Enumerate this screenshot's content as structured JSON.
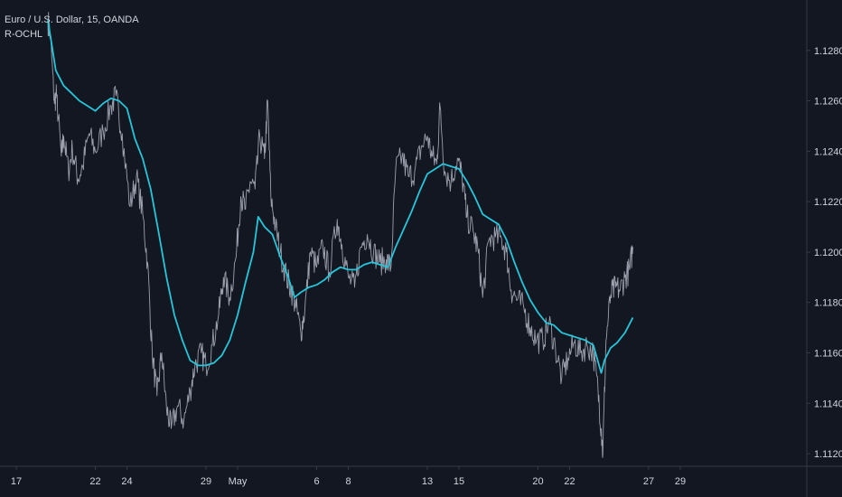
{
  "symbol_title": "Euro / U.S. Dollar, 15, OANDA",
  "indicator_name": "R-OCHL",
  "colors": {
    "background": "#131722",
    "price_line": "#9aa0ad",
    "indicator_line": "#26c6da",
    "axis_text": "#d1d4dc",
    "axis_line": "#363a45"
  },
  "chart_data": {
    "type": "line",
    "title": "Euro / U.S. Dollar, 15, OANDA",
    "xlabel": "",
    "ylabel": "",
    "ylim": [
      1.1115,
      1.13
    ],
    "x_ticks": [
      {
        "label": "17",
        "day": 0
      },
      {
        "label": "22",
        "day": 5
      },
      {
        "label": "24",
        "day": 7
      },
      {
        "label": "29",
        "day": 12
      },
      {
        "label": "May",
        "day": 14
      },
      {
        "label": "6",
        "day": 19
      },
      {
        "label": "8",
        "day": 21
      },
      {
        "label": "13",
        "day": 26
      },
      {
        "label": "15",
        "day": 28
      },
      {
        "label": "20",
        "day": 33
      },
      {
        "label": "22",
        "day": 35
      },
      {
        "label": "27",
        "day": 40
      },
      {
        "label": "29",
        "day": 42
      }
    ],
    "y_ticks": [
      "1.11200",
      "1.11400",
      "1.11600",
      "1.11800",
      "1.12000",
      "1.12200",
      "1.12400",
      "1.12600",
      "1.12800"
    ],
    "y_tick_values": [
      1.112,
      1.114,
      1.116,
      1.118,
      1.12,
      1.122,
      1.124,
      1.126,
      1.128
    ],
    "series": [
      {
        "kind": "price",
        "points": [
          [
            2.0,
            1.1292
          ],
          [
            2.15,
            1.1286
          ],
          [
            2.4,
            1.126
          ],
          [
            2.55,
            1.1262
          ],
          [
            2.85,
            1.1238
          ],
          [
            3.0,
            1.1246
          ],
          [
            3.3,
            1.1232
          ],
          [
            3.55,
            1.1241
          ],
          [
            3.9,
            1.1229
          ],
          [
            4.2,
            1.1234
          ],
          [
            4.6,
            1.1247
          ],
          [
            5.0,
            1.124
          ],
          [
            5.5,
            1.1248
          ],
          [
            6.0,
            1.1258
          ],
          [
            6.3,
            1.1262
          ],
          [
            6.7,
            1.1247
          ],
          [
            7.2,
            1.1218
          ],
          [
            7.6,
            1.123
          ],
          [
            8.0,
            1.1215
          ],
          [
            8.3,
            1.1196
          ],
          [
            8.6,
            1.116
          ],
          [
            8.9,
            1.1143
          ],
          [
            9.2,
            1.116
          ],
          [
            9.5,
            1.1138
          ],
          [
            9.8,
            1.113
          ],
          [
            10.2,
            1.1139
          ],
          [
            10.6,
            1.1133
          ],
          [
            11.0,
            1.1145
          ],
          [
            11.3,
            1.1155
          ],
          [
            11.7,
            1.116
          ],
          [
            12.0,
            1.1155
          ],
          [
            12.4,
            1.1163
          ],
          [
            12.8,
            1.1175
          ],
          [
            13.1,
            1.119
          ],
          [
            13.5,
            1.1182
          ],
          [
            13.9,
            1.1198
          ],
          [
            14.2,
            1.1222
          ],
          [
            14.5,
            1.1217
          ],
          [
            14.8,
            1.1228
          ],
          [
            15.1,
            1.1225
          ],
          [
            15.4,
            1.1246
          ],
          [
            15.7,
            1.1237
          ],
          [
            15.9,
            1.126
          ],
          [
            16.1,
            1.1222
          ],
          [
            16.4,
            1.121
          ],
          [
            16.7,
            1.12
          ],
          [
            17.1,
            1.119
          ],
          [
            17.4,
            1.1185
          ],
          [
            17.7,
            1.1178
          ],
          [
            18.0,
            1.1168
          ],
          [
            18.25,
            1.1177
          ],
          [
            18.6,
            1.12
          ],
          [
            19.0,
            1.1194
          ],
          [
            19.4,
            1.1202
          ],
          [
            19.8,
            1.1192
          ],
          [
            20.3,
            1.1213
          ],
          [
            20.6,
            1.1203
          ],
          [
            21.0,
            1.119
          ],
          [
            21.4,
            1.1186
          ],
          [
            21.8,
            1.1202
          ],
          [
            22.2,
            1.1207
          ],
          [
            22.6,
            1.12
          ],
          [
            23.0,
            1.1196
          ],
          [
            23.4,
            1.1197
          ],
          [
            23.7,
            1.1194
          ],
          [
            24.0,
            1.1233
          ],
          [
            24.4,
            1.1238
          ],
          [
            24.8,
            1.123
          ],
          [
            25.2,
            1.1232
          ],
          [
            25.6,
            1.1241
          ],
          [
            26.0,
            1.1246
          ],
          [
            26.3,
            1.1238
          ],
          [
            26.6,
            1.1235
          ],
          [
            26.8,
            1.1258
          ],
          [
            27.1,
            1.1232
          ],
          [
            27.5,
            1.1228
          ],
          [
            27.9,
            1.1237
          ],
          [
            28.2,
            1.123
          ],
          [
            28.5,
            1.1214
          ],
          [
            28.9,
            1.1208
          ],
          [
            29.2,
            1.1201
          ],
          [
            29.5,
            1.1182
          ],
          [
            29.9,
            1.1205
          ],
          [
            30.3,
            1.1206
          ],
          [
            30.7,
            1.1205
          ],
          [
            31.0,
            1.12
          ],
          [
            31.3,
            1.1185
          ],
          [
            31.7,
            1.1181
          ],
          [
            32.1,
            1.1178
          ],
          [
            32.5,
            1.117
          ],
          [
            32.9,
            1.1165
          ],
          [
            33.3,
            1.1165
          ],
          [
            33.7,
            1.1172
          ],
          [
            34.1,
            1.1162
          ],
          [
            34.5,
            1.115
          ],
          [
            34.9,
            1.1158
          ],
          [
            35.3,
            1.1164
          ],
          [
            35.7,
            1.116
          ],
          [
            36.1,
            1.1163
          ],
          [
            36.5,
            1.116
          ],
          [
            36.8,
            1.1145
          ],
          [
            37.0,
            1.113
          ],
          [
            37.1,
            1.112
          ],
          [
            37.3,
            1.1165
          ],
          [
            37.6,
            1.1183
          ],
          [
            37.9,
            1.1186
          ],
          [
            38.2,
            1.1185
          ],
          [
            38.5,
            1.119
          ],
          [
            38.8,
            1.1193
          ],
          [
            39.0,
            1.1202
          ]
        ]
      },
      {
        "kind": "indicator",
        "name": "R-OCHL",
        "points": [
          [
            2.0,
            1.1292
          ],
          [
            2.5,
            1.1272
          ],
          [
            3.0,
            1.1266
          ],
          [
            3.5,
            1.1263
          ],
          [
            4.0,
            1.126
          ],
          [
            4.5,
            1.1258
          ],
          [
            5.0,
            1.1256
          ],
          [
            5.5,
            1.1259
          ],
          [
            6.0,
            1.1261
          ],
          [
            6.5,
            1.126
          ],
          [
            7.0,
            1.1257
          ],
          [
            7.5,
            1.1245
          ],
          [
            8.0,
            1.1237
          ],
          [
            8.5,
            1.1225
          ],
          [
            9.0,
            1.1208
          ],
          [
            9.5,
            1.119
          ],
          [
            10.0,
            1.1175
          ],
          [
            10.5,
            1.1165
          ],
          [
            11.0,
            1.1157
          ],
          [
            11.5,
            1.1155
          ],
          [
            12.0,
            1.1155
          ],
          [
            12.5,
            1.1156
          ],
          [
            13.0,
            1.1159
          ],
          [
            13.5,
            1.1165
          ],
          [
            14.0,
            1.1175
          ],
          [
            14.5,
            1.1188
          ],
          [
            15.0,
            1.12
          ],
          [
            15.3,
            1.1214
          ],
          [
            15.7,
            1.121
          ],
          [
            16.2,
            1.1207
          ],
          [
            16.7,
            1.1198
          ],
          [
            17.2,
            1.119
          ],
          [
            17.6,
            1.1182
          ],
          [
            18.0,
            1.1184
          ],
          [
            18.5,
            1.1186
          ],
          [
            19.0,
            1.1187
          ],
          [
            19.5,
            1.1189
          ],
          [
            20.0,
            1.1192
          ],
          [
            20.5,
            1.1194
          ],
          [
            21.0,
            1.1193
          ],
          [
            21.5,
            1.1193
          ],
          [
            22.0,
            1.1195
          ],
          [
            22.5,
            1.1196
          ],
          [
            23.0,
            1.1195
          ],
          [
            23.5,
            1.1194
          ],
          [
            24.0,
            1.1202
          ],
          [
            24.5,
            1.1209
          ],
          [
            25.0,
            1.1216
          ],
          [
            25.5,
            1.1224
          ],
          [
            26.0,
            1.1231
          ],
          [
            26.5,
            1.1233
          ],
          [
            27.0,
            1.1235
          ],
          [
            27.5,
            1.1234
          ],
          [
            28.0,
            1.1233
          ],
          [
            28.5,
            1.1228
          ],
          [
            29.0,
            1.1222
          ],
          [
            29.5,
            1.1215
          ],
          [
            30.0,
            1.1213
          ],
          [
            30.5,
            1.1211
          ],
          [
            31.0,
            1.1205
          ],
          [
            31.5,
            1.1196
          ],
          [
            32.0,
            1.1188
          ],
          [
            32.5,
            1.1181
          ],
          [
            33.0,
            1.1176
          ],
          [
            33.5,
            1.1172
          ],
          [
            34.0,
            1.1171
          ],
          [
            34.5,
            1.1168
          ],
          [
            35.0,
            1.1167
          ],
          [
            35.5,
            1.1166
          ],
          [
            36.0,
            1.1165
          ],
          [
            36.5,
            1.1163
          ],
          [
            37.0,
            1.1152
          ],
          [
            37.2,
            1.1157
          ],
          [
            37.6,
            1.1162
          ],
          [
            38.0,
            1.1164
          ],
          [
            38.5,
            1.1168
          ],
          [
            39.0,
            1.1174
          ]
        ]
      }
    ]
  }
}
